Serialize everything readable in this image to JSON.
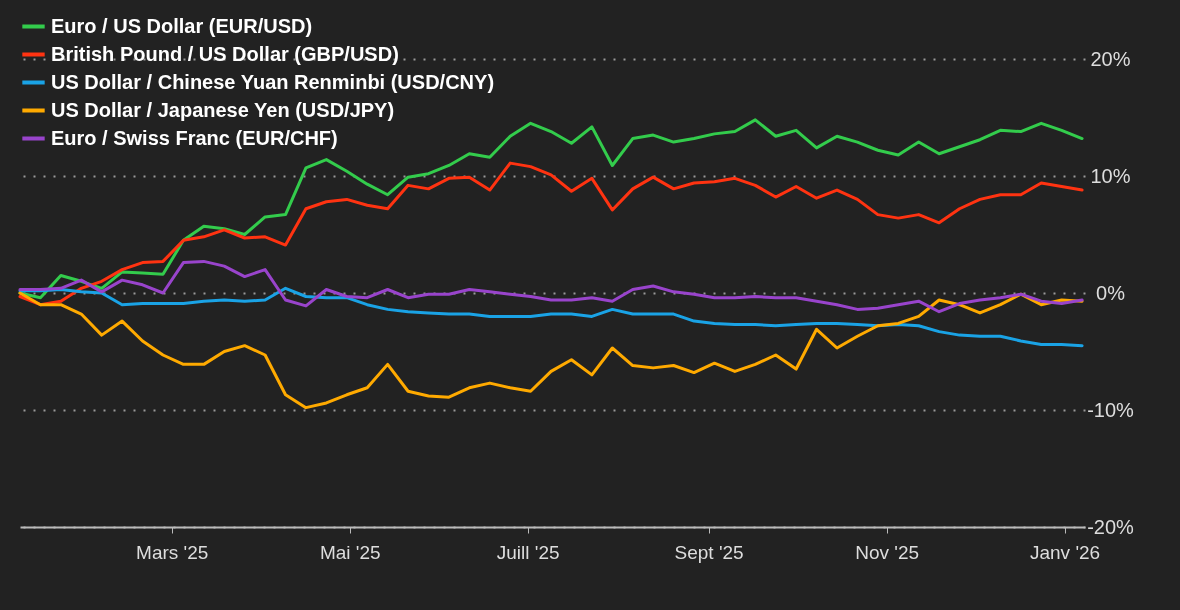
{
  "chart_data": {
    "type": "line",
    "x": [
      "2025-01-08",
      "2025-01-15",
      "2025-01-22",
      "2025-01-29",
      "2025-02-05",
      "2025-02-12",
      "2025-02-19",
      "2025-02-26",
      "2025-03-05",
      "2025-03-12",
      "2025-03-19",
      "2025-03-26",
      "2025-04-02",
      "2025-04-09",
      "2025-04-16",
      "2025-04-23",
      "2025-04-30",
      "2025-05-07",
      "2025-05-14",
      "2025-05-21",
      "2025-05-28",
      "2025-06-04",
      "2025-06-11",
      "2025-06-18",
      "2025-06-25",
      "2025-07-02",
      "2025-07-09",
      "2025-07-16",
      "2025-07-23",
      "2025-07-30",
      "2025-08-06",
      "2025-08-13",
      "2025-08-20",
      "2025-08-27",
      "2025-09-03",
      "2025-09-10",
      "2025-09-17",
      "2025-09-24",
      "2025-10-01",
      "2025-10-08",
      "2025-10-15",
      "2025-10-22",
      "2025-10-29",
      "2025-11-05",
      "2025-11-12",
      "2025-11-19",
      "2025-11-26",
      "2025-12-03",
      "2025-12-10",
      "2025-12-17",
      "2025-12-24",
      "2025-12-31",
      "2026-01-07"
    ],
    "series": [
      {
        "name": "Euro / US Dollar (EUR/USD)",
        "color": "#33cc4c",
        "values": [
          0,
          -0.4,
          1.5,
          1.0,
          0.4,
          1.8,
          1.7,
          1.6,
          4.5,
          5.7,
          5.5,
          5.0,
          6.5,
          6.7,
          10.7,
          11.4,
          10.4,
          9.3,
          8.4,
          9.9,
          10.2,
          10.9,
          11.9,
          11.6,
          13.4,
          14.5,
          13.8,
          12.8,
          14.2,
          10.9,
          13.2,
          13.5,
          12.9,
          13.2,
          13.6,
          13.8,
          14.8,
          13.4,
          13.9,
          12.4,
          13.4,
          12.9,
          12.2,
          11.8,
          12.9,
          11.9,
          12.5,
          13.1,
          13.9,
          13.8,
          14.5,
          13.9,
          13.2
        ]
      },
      {
        "name": "British Pound / US Dollar (GBP/USD)",
        "color": "#ff3311",
        "values": [
          -0.3,
          -1.0,
          -0.7,
          0.4,
          1.0,
          2.0,
          2.6,
          2.7,
          4.5,
          4.8,
          5.4,
          4.7,
          4.8,
          4.1,
          7.2,
          7.8,
          8.0,
          7.5,
          7.2,
          9.2,
          8.9,
          9.8,
          9.9,
          8.8,
          11.1,
          10.8,
          10.1,
          8.7,
          9.8,
          7.1,
          8.9,
          9.9,
          8.9,
          9.4,
          9.5,
          9.8,
          9.2,
          8.2,
          9.1,
          8.1,
          8.8,
          8.0,
          6.7,
          6.4,
          6.7,
          6.0,
          7.2,
          8.0,
          8.4,
          8.4,
          9.4,
          9.1,
          8.8
        ]
      },
      {
        "name": "US Dollar / Chinese Yuan Renminbi (USD/CNY)",
        "color": "#1aa3e6",
        "values": [
          0.2,
          0.2,
          0.3,
          0.1,
          0,
          -1.0,
          -0.9,
          -0.9,
          -0.9,
          -0.7,
          -0.6,
          -0.7,
          -0.6,
          0.4,
          -0.3,
          -0.4,
          -0.4,
          -1.0,
          -1.4,
          -1.6,
          -1.7,
          -1.8,
          -1.8,
          -2.0,
          -2.0,
          -2.0,
          -1.8,
          -1.8,
          -2.0,
          -1.4,
          -1.8,
          -1.8,
          -1.8,
          -2.4,
          -2.6,
          -2.7,
          -2.7,
          -2.8,
          -2.7,
          -2.6,
          -2.6,
          -2.7,
          -2.8,
          -2.7,
          -2.8,
          -3.3,
          -3.6,
          -3.7,
          -3.7,
          -4.1,
          -4.4,
          -4.4,
          -4.5
        ]
      },
      {
        "name": "US Dollar / Japanese Yen (USD/JPY)",
        "color": "#ffaa00",
        "values": [
          0,
          -1.0,
          -1.0,
          -1.8,
          -3.6,
          -2.4,
          -4.1,
          -5.3,
          -6.1,
          -6.1,
          -5.0,
          -4.5,
          -5.3,
          -8.7,
          -9.8,
          -9.4,
          -8.7,
          -8.1,
          -6.1,
          -8.4,
          -8.8,
          -8.9,
          -8.1,
          -7.7,
          -8.1,
          -8.4,
          -6.7,
          -5.7,
          -7.0,
          -4.7,
          -6.2,
          -6.4,
          -6.2,
          -6.8,
          -6.0,
          -6.7,
          -6.1,
          -5.3,
          -6.5,
          -3.1,
          -4.7,
          -3.7,
          -2.8,
          -2.6,
          -2.0,
          -0.6,
          -1.0,
          -1.7,
          -1.0,
          -0.1,
          -1.0,
          -0.6,
          -0.7
        ]
      },
      {
        "name": "Euro / Swiss Franc (EUR/CHF)",
        "color": "#9944cc",
        "values": [
          0.3,
          0.3,
          0.4,
          1.1,
          0.1,
          1.1,
          0.7,
          0,
          2.6,
          2.7,
          2.3,
          1.4,
          2.0,
          -0.6,
          -1.1,
          0.3,
          -0.3,
          -0.4,
          0.3,
          -0.4,
          -0.1,
          -0.1,
          0.3,
          0.1,
          -0.1,
          -0.3,
          -0.6,
          -0.6,
          -0.4,
          -0.7,
          0.3,
          0.6,
          0.1,
          -0.1,
          -0.4,
          -0.4,
          -0.3,
          -0.4,
          -0.4,
          -0.7,
          -1.0,
          -1.4,
          -1.3,
          -1.0,
          -0.7,
          -1.6,
          -0.9,
          -0.6,
          -0.4,
          -0.1,
          -0.7,
          -0.9,
          -0.6
        ]
      }
    ],
    "xlim": [
      "2025-01-08",
      "2026-01-08"
    ],
    "xticks": [
      {
        "value": "2025-03-01",
        "label": "Mars '25"
      },
      {
        "value": "2025-05-01",
        "label": "Mai '25"
      },
      {
        "value": "2025-07-01",
        "label": "Juill '25"
      },
      {
        "value": "2025-09-01",
        "label": "Sept '25"
      },
      {
        "value": "2025-11-01",
        "label": "Nov '25"
      },
      {
        "value": "2026-01-01",
        "label": "Janv '26"
      }
    ],
    "ylim": [
      -20,
      20
    ],
    "yticks": [
      {
        "value": 20,
        "label": "20%"
      },
      {
        "value": 10,
        "label": "10%"
      },
      {
        "value": 0,
        "label": "0%"
      },
      {
        "value": -10,
        "label": "-10%"
      },
      {
        "value": -20,
        "label": "-20%"
      }
    ],
    "grid": "y",
    "legend": "top left"
  }
}
